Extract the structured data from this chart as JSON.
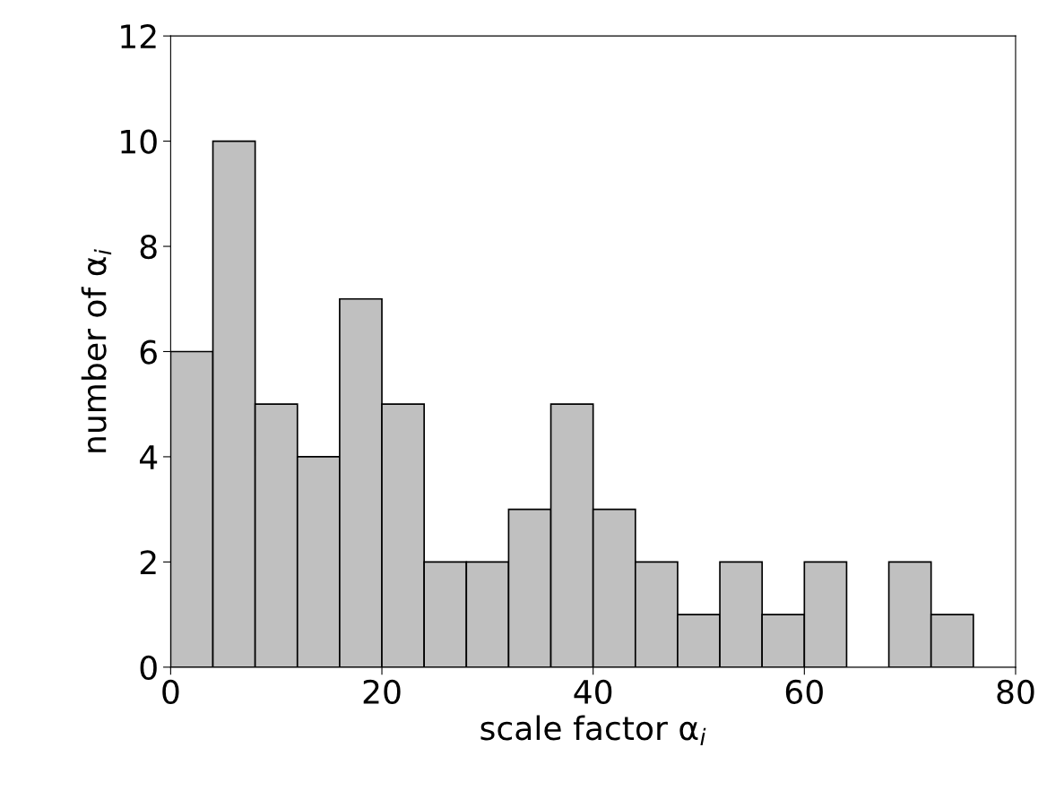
{
  "chart_data": {
    "type": "histogram",
    "xlabel": "scale factor α$_{i}$",
    "ylabel": "number of α$_{i}$",
    "bins": [
      0,
      4,
      8,
      12,
      16,
      20,
      24,
      28,
      32,
      36,
      40,
      44,
      48,
      52,
      56,
      60,
      64,
      68,
      72,
      76
    ],
    "values": [
      6,
      10,
      5,
      4,
      7,
      5,
      2,
      2,
      3,
      5,
      3,
      2,
      1,
      2,
      1,
      2,
      0,
      2,
      1
    ],
    "color": "#c0c0c0",
    "xlim": [
      0,
      80
    ],
    "xticks": [
      0,
      20,
      40,
      60,
      80
    ],
    "ylim": [
      0,
      12
    ],
    "yticks": [
      0,
      2,
      4,
      6,
      8,
      10,
      12
    ],
    "grid": false
  }
}
